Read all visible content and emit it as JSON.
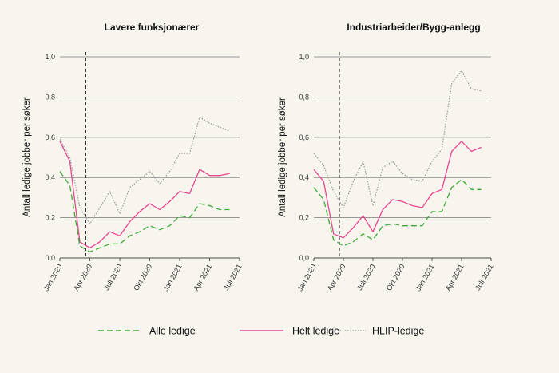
{
  "chart_data": [
    {
      "type": "line",
      "title": "Lavere funksjonærer",
      "xlabel": "",
      "ylabel": "Antall ledige jobber per søker",
      "x": [
        "2020-01",
        "2020-02",
        "2020-03",
        "2020-04",
        "2020-05",
        "2020-06",
        "2020-07",
        "2020-08",
        "2020-09",
        "2020-10",
        "2020-11",
        "2020-12",
        "2021-01",
        "2021-02",
        "2021-03",
        "2021-04",
        "2021-05",
        "2021-06"
      ],
      "xticks": [
        "Jan 2020",
        "Apr 2020",
        "Juli 2020",
        "Okt 2020",
        "Jan 2021",
        "Apr 2021",
        "Juli 2021"
      ],
      "ylim": [
        0,
        1.0
      ],
      "yticks": [
        "0,0",
        "0,2",
        "0,4",
        "0,6",
        "0,8",
        "1,0"
      ],
      "vline": "2020-03",
      "grid": "horizontal",
      "series": [
        {
          "name": "Alle ledige",
          "color": "#3aaa35",
          "style": "dashed",
          "values": [
            0.43,
            0.36,
            0.06,
            0.03,
            0.05,
            0.07,
            0.07,
            0.11,
            0.13,
            0.16,
            0.14,
            0.16,
            0.21,
            0.2,
            0.27,
            0.26,
            0.24,
            0.24
          ]
        },
        {
          "name": "Helt ledige",
          "color": "#e8468f",
          "style": "solid",
          "values": [
            0.58,
            0.48,
            0.08,
            0.05,
            0.08,
            0.13,
            0.11,
            0.18,
            0.23,
            0.27,
            0.24,
            0.28,
            0.33,
            0.32,
            0.44,
            0.41,
            0.41,
            0.42
          ]
        },
        {
          "name": "HLIP-ledige",
          "color": "#9a9a9a",
          "style": "dotted",
          "values": [
            0.59,
            0.5,
            0.25,
            0.17,
            0.25,
            0.33,
            0.22,
            0.35,
            0.39,
            0.43,
            0.37,
            0.43,
            0.52,
            0.52,
            0.7,
            0.67,
            0.65,
            0.63
          ]
        }
      ]
    },
    {
      "type": "line",
      "title": "Industriarbeider/Bygg-anlegg",
      "xlabel": "",
      "ylabel": "Antall ledige jobber per søker",
      "x": [
        "2020-01",
        "2020-02",
        "2020-03",
        "2020-04",
        "2020-05",
        "2020-06",
        "2020-07",
        "2020-08",
        "2020-09",
        "2020-10",
        "2020-11",
        "2020-12",
        "2021-01",
        "2021-02",
        "2021-03",
        "2021-04",
        "2021-05",
        "2021-06"
      ],
      "xticks": [
        "Jan 2020",
        "Apr 2020",
        "Juli 2020",
        "Okt 2020",
        "Jan 2021",
        "Apr 2021",
        "Juli 2021"
      ],
      "ylim": [
        0,
        1.0
      ],
      "yticks": [
        "0,0",
        "0,2",
        "0,4",
        "0,6",
        "0,8",
        "1,0"
      ],
      "vline": "2020-03",
      "grid": "horizontal",
      "series": [
        {
          "name": "Alle ledige",
          "color": "#3aaa35",
          "style": "dashed",
          "values": [
            0.35,
            0.29,
            0.09,
            0.06,
            0.08,
            0.12,
            0.09,
            0.16,
            0.17,
            0.16,
            0.16,
            0.16,
            0.23,
            0.23,
            0.35,
            0.39,
            0.34,
            0.34
          ]
        },
        {
          "name": "Helt ledige",
          "color": "#e8468f",
          "style": "solid",
          "values": [
            0.44,
            0.38,
            0.12,
            0.1,
            0.15,
            0.21,
            0.13,
            0.24,
            0.29,
            0.28,
            0.26,
            0.25,
            0.32,
            0.34,
            0.53,
            0.58,
            0.53,
            0.55
          ]
        },
        {
          "name": "HLIP-ledige",
          "color": "#9a9a9a",
          "style": "dotted",
          "values": [
            0.52,
            0.46,
            0.33,
            0.25,
            0.38,
            0.48,
            0.26,
            0.45,
            0.48,
            0.42,
            0.39,
            0.38,
            0.48,
            0.54,
            0.87,
            0.93,
            0.84,
            0.83
          ]
        }
      ]
    }
  ],
  "legend": {
    "position": "bottom",
    "items": [
      {
        "label": "Alle ledige",
        "color": "#3aaa35",
        "style": "dashed"
      },
      {
        "label": "Helt ledige",
        "color": "#e8468f",
        "style": "solid"
      },
      {
        "label": "HLIP-ledige",
        "color": "#9a9a9a",
        "style": "dotted"
      }
    ]
  },
  "colors": {
    "background": "#f7f5ee",
    "grid": "#777777",
    "axis": "#333333"
  }
}
